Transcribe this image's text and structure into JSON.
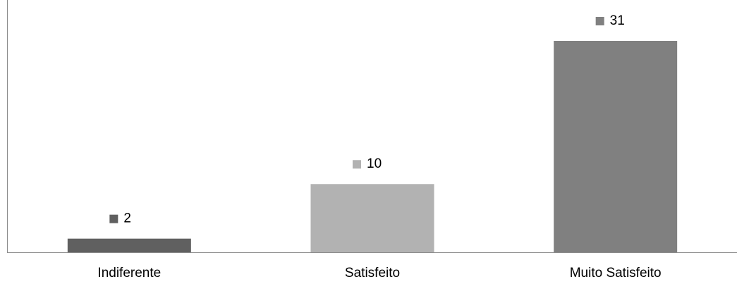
{
  "chart_data": {
    "type": "bar",
    "categories": [
      "Indiferente",
      "Satisfeito",
      "Muito Satisfeito"
    ],
    "values": [
      2,
      10,
      31
    ],
    "data_labels": [
      "2",
      "10",
      "31"
    ],
    "colors": [
      "#606060",
      "#b2b2b2",
      "#808080"
    ],
    "ylim": [
      0,
      31
    ],
    "grid": false,
    "axis_color": "#8c8c8c",
    "label_marker": "square-swatch-left-of-value"
  }
}
